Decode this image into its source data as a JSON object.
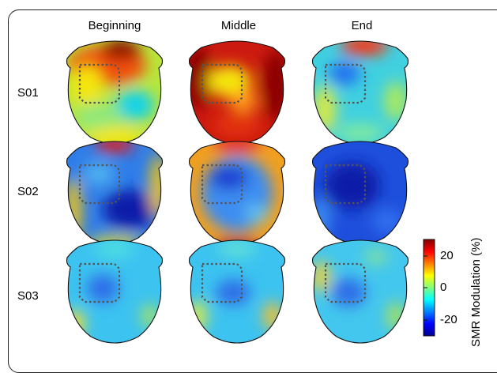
{
  "columns": [
    "Beginning",
    "Middle",
    "End"
  ],
  "rows": [
    "S01",
    "S02",
    "S03"
  ],
  "colorbar": {
    "label": "SMR Modulation (%)",
    "ticks": [
      "20",
      "0",
      "-20"
    ],
    "range": [
      -30,
      30
    ]
  },
  "colors": {
    "dark_red": "#8b0000",
    "red": "#e31a1c",
    "orange": "#ff8c00",
    "yellow": "#f5e60a",
    "cyan": "#19d3e6",
    "light_blue": "#36a9f2",
    "blue": "#1f55e6",
    "dark_blue": "#0b1ea8",
    "roi_outline": "#555555"
  },
  "maps": [
    {
      "row": "S01",
      "column": "Beginning",
      "base": "#e6dc3c"
    },
    {
      "row": "S01",
      "column": "Middle",
      "base": "#cc1a10"
    },
    {
      "row": "S01",
      "column": "End",
      "base": "#4fc8e8"
    },
    {
      "row": "S02",
      "column": "Beginning",
      "base": "#2f7de8"
    },
    {
      "row": "S02",
      "column": "Middle",
      "base": "#3c8df0"
    },
    {
      "row": "S02",
      "column": "End",
      "base": "#1a3cd2"
    },
    {
      "row": "S03",
      "column": "Beginning",
      "base": "#3cc3f0"
    },
    {
      "row": "S03",
      "column": "Middle",
      "base": "#3cc3f0"
    },
    {
      "row": "S03",
      "column": "End",
      "base": "#43c7ee"
    }
  ]
}
